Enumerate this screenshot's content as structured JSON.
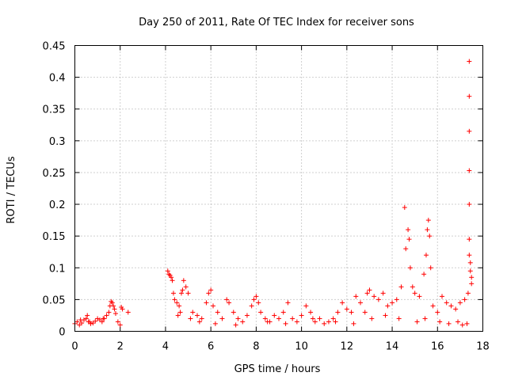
{
  "chart_data": {
    "type": "scatter",
    "title": "Day 250 of 2011, Rate Of TEC Index for receiver sons",
    "xlabel": "GPS time / hours",
    "ylabel": "ROTI / TECUs",
    "xlim": [
      0,
      18
    ],
    "ylim": [
      0,
      0.45
    ],
    "xticks": [
      "0",
      "2",
      "4",
      "6",
      "8",
      "10",
      "12",
      "14",
      "16",
      "18"
    ],
    "yticks": [
      "0",
      "0.05",
      "0.1",
      "0.15",
      "0.2",
      "0.25",
      "0.3",
      "0.35",
      "0.4",
      "0.45"
    ],
    "grid": true,
    "marker": "+",
    "color": "#ff0000",
    "series": [
      {
        "name": "ROTI",
        "x": [
          0.0,
          0.1,
          0.2,
          0.3,
          0.4,
          0.5,
          0.55,
          0.6,
          0.7,
          0.8,
          0.9,
          1.0,
          1.1,
          1.2,
          1.3,
          1.4,
          1.5,
          1.55,
          1.6,
          1.65,
          1.7,
          1.75,
          1.8,
          1.9,
          2.0,
          2.05,
          2.1,
          4.1,
          4.15,
          4.2,
          4.25,
          4.3,
          4.35,
          4.4,
          4.5,
          4.6,
          4.65,
          4.7,
          4.75,
          4.8,
          4.9,
          5.0,
          5.2,
          5.4,
          5.6,
          5.8,
          5.9,
          6.0,
          6.1,
          6.3,
          6.5,
          6.7,
          6.8,
          7.0,
          7.2,
          7.4,
          7.6,
          7.8,
          7.9,
          8.0,
          8.1,
          8.2,
          8.4,
          8.6,
          8.8,
          9.0,
          9.2,
          9.4,
          9.6,
          9.8,
          10.0,
          10.2,
          10.4,
          10.6,
          10.8,
          11.0,
          11.2,
          11.4,
          11.6,
          11.8,
          12.0,
          12.2,
          12.4,
          12.6,
          12.8,
          12.9,
          13.0,
          13.2,
          13.4,
          13.6,
          13.8,
          14.0,
          14.2,
          14.4,
          14.55,
          14.6,
          14.7,
          14.75,
          14.8,
          14.9,
          15.0,
          15.2,
          15.4,
          15.5,
          15.55,
          15.6,
          15.65,
          15.7,
          15.8,
          16.0,
          16.2,
          16.4,
          16.6,
          16.8,
          17.0,
          17.2,
          17.35,
          17.4,
          17.4,
          17.4,
          17.4,
          17.4,
          17.4,
          17.4,
          17.45,
          17.45,
          17.5,
          17.5,
          0.25,
          0.65,
          1.25,
          2.35,
          4.55,
          5.1,
          5.5,
          6.2,
          7.1,
          8.5,
          9.3,
          10.5,
          11.5,
          12.3,
          13.1,
          13.7,
          14.3,
          15.1,
          15.45,
          16.1,
          16.5,
          16.9,
          17.1,
          17.3
        ],
        "y": [
          0.012,
          0.015,
          0.01,
          0.013,
          0.018,
          0.02,
          0.025,
          0.015,
          0.012,
          0.013,
          0.016,
          0.02,
          0.018,
          0.015,
          0.02,
          0.025,
          0.03,
          0.04,
          0.047,
          0.045,
          0.04,
          0.035,
          0.028,
          0.015,
          0.01,
          0.038,
          0.035,
          0.095,
          0.09,
          0.088,
          0.085,
          0.08,
          0.06,
          0.05,
          0.045,
          0.04,
          0.03,
          0.06,
          0.065,
          0.08,
          0.07,
          0.06,
          0.03,
          0.025,
          0.02,
          0.045,
          0.06,
          0.065,
          0.04,
          0.03,
          0.02,
          0.05,
          0.045,
          0.03,
          0.02,
          0.015,
          0.025,
          0.04,
          0.05,
          0.055,
          0.045,
          0.03,
          0.02,
          0.015,
          0.025,
          0.02,
          0.03,
          0.045,
          0.02,
          0.015,
          0.025,
          0.04,
          0.03,
          0.015,
          0.02,
          0.012,
          0.015,
          0.02,
          0.03,
          0.045,
          0.035,
          0.03,
          0.055,
          0.045,
          0.03,
          0.06,
          0.065,
          0.055,
          0.05,
          0.06,
          0.04,
          0.045,
          0.05,
          0.07,
          0.195,
          0.13,
          0.16,
          0.145,
          0.1,
          0.07,
          0.06,
          0.055,
          0.09,
          0.12,
          0.16,
          0.175,
          0.15,
          0.1,
          0.04,
          0.03,
          0.055,
          0.045,
          0.04,
          0.035,
          0.045,
          0.05,
          0.06,
          0.425,
          0.37,
          0.315,
          0.253,
          0.2,
          0.145,
          0.12,
          0.108,
          0.095,
          0.085,
          0.075,
          0.018,
          0.015,
          0.02,
          0.03,
          0.025,
          0.02,
          0.015,
          0.012,
          0.01,
          0.015,
          0.012,
          0.02,
          0.015,
          0.012,
          0.02,
          0.025,
          0.02,
          0.015,
          0.02,
          0.015,
          0.012,
          0.015,
          0.01,
          0.012
        ]
      }
    ]
  }
}
